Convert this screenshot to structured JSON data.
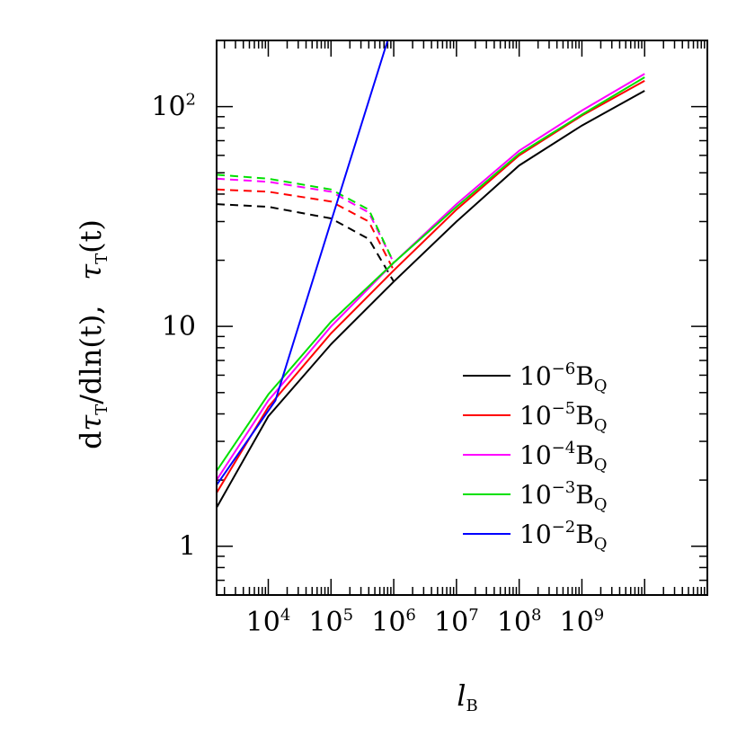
{
  "chart_data": {
    "type": "line",
    "x_scale": "log",
    "y_scale": "log",
    "xlim": [
      1500,
      100000000000
    ],
    "ylim": [
      0.6,
      200
    ],
    "xlabel": {
      "main": "l",
      "sub": "B"
    },
    "ylabel": {
      "d": "d",
      "tau": "τ",
      "tsub": "T",
      "slash": "/",
      "dln": "dln(t),",
      "tau2": "τ",
      "tsub2": "T",
      "t": "(t)"
    },
    "x_ticks": [
      {
        "value": 10000,
        "base": "10",
        "exp": "4"
      },
      {
        "value": 100000,
        "base": "10",
        "exp": "5"
      },
      {
        "value": 1000000,
        "base": "10",
        "exp": "6"
      },
      {
        "value": 10000000,
        "base": "10",
        "exp": "7"
      },
      {
        "value": 100000000,
        "base": "10",
        "exp": "8"
      },
      {
        "value": 1000000000,
        "base": "10",
        "exp": "9"
      }
    ],
    "y_ticks": [
      {
        "value": 1,
        "base": "1",
        "exp": ""
      },
      {
        "value": 10,
        "base": "10",
        "exp": ""
      },
      {
        "value": 100,
        "base": "10",
        "exp": "2"
      }
    ],
    "legend_position": "bottom-right",
    "series": [
      {
        "name": "10^-6 B_Q",
        "color": "#000000",
        "legend": {
          "base": "10",
          "exp": "−6",
          "B": "B",
          "sub": "Q"
        },
        "solid": [
          [
            1500,
            1.5
          ],
          [
            10000,
            3.9
          ],
          [
            100000,
            8.3
          ],
          [
            1000000,
            16
          ],
          [
            10000000,
            30
          ],
          [
            100000000,
            54
          ],
          [
            1000000000,
            82
          ],
          [
            10000000000,
            118
          ]
        ],
        "dashed": [
          [
            1500,
            36
          ],
          [
            10000,
            35
          ],
          [
            100000,
            31
          ],
          [
            400000,
            25
          ],
          [
            1000000,
            16
          ]
        ]
      },
      {
        "name": "10^-5 B_Q",
        "color": "#ff0000",
        "legend": {
          "base": "10",
          "exp": "−5",
          "B": "B",
          "sub": "Q"
        },
        "solid": [
          [
            1500,
            1.75
          ],
          [
            10000,
            4.3
          ],
          [
            100000,
            9.3
          ],
          [
            1000000,
            18
          ],
          [
            10000000,
            34
          ],
          [
            100000000,
            60
          ],
          [
            1000000000,
            91
          ],
          [
            10000000000,
            131
          ]
        ],
        "dashed": [
          [
            1500,
            42
          ],
          [
            10000,
            41
          ],
          [
            100000,
            37
          ],
          [
            400000,
            30
          ],
          [
            1000000,
            18
          ]
        ]
      },
      {
        "name": "10^-4 B_Q",
        "color": "#ff00ff",
        "legend": {
          "base": "10",
          "exp": "−4",
          "B": "B",
          "sub": "Q"
        },
        "solid": [
          [
            1500,
            2.0
          ],
          [
            10000,
            4.6
          ],
          [
            100000,
            10
          ],
          [
            1000000,
            19.5
          ],
          [
            10000000,
            36
          ],
          [
            100000000,
            63
          ],
          [
            1000000000,
            96
          ],
          [
            10000000000,
            141
          ]
        ],
        "dashed": [
          [
            1500,
            47
          ],
          [
            10000,
            45.5
          ],
          [
            100000,
            41
          ],
          [
            400000,
            33
          ],
          [
            1000000,
            19.5
          ]
        ]
      },
      {
        "name": "10^-3 B_Q",
        "color": "#00e000",
        "legend": {
          "base": "10",
          "exp": "−3",
          "B": "B",
          "sub": "Q"
        },
        "solid": [
          [
            1500,
            2.2
          ],
          [
            10000,
            4.9
          ],
          [
            100000,
            10.5
          ],
          [
            1000000,
            19.5
          ],
          [
            10000000,
            35
          ],
          [
            100000000,
            61
          ],
          [
            1000000000,
            92
          ],
          [
            10000000000,
            136
          ]
        ],
        "dashed": [
          [
            1500,
            49
          ],
          [
            10000,
            47
          ],
          [
            100000,
            42
          ],
          [
            400000,
            34
          ],
          [
            1000000,
            19.5
          ]
        ]
      },
      {
        "name": "10^-2 B_Q",
        "color": "#0000ff",
        "legend": {
          "base": "10",
          "exp": "−2",
          "B": "B",
          "sub": "Q"
        },
        "solid": [
          [
            1500,
            1.9
          ],
          [
            13000,
            4.6
          ],
          [
            100000,
            30
          ],
          [
            800000,
            200
          ]
        ],
        "dashed": []
      }
    ]
  }
}
